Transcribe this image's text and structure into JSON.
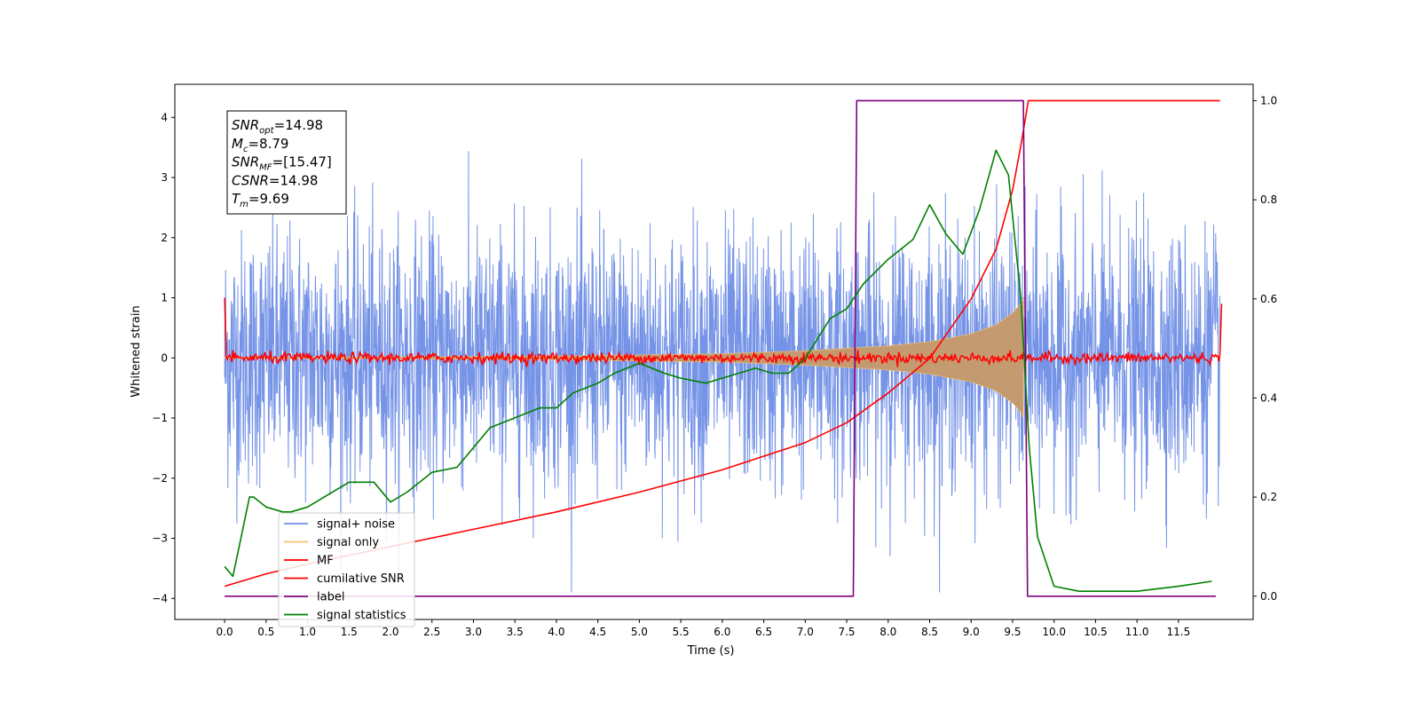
{
  "chart_data": {
    "type": "line",
    "title": "",
    "xlabel": "Time (s)",
    "ylabel": "Whitened strain",
    "xlim": [
      -0.6,
      12.4
    ],
    "ylim": [
      -4.35,
      4.55
    ],
    "y2lim": [
      -0.047,
      1.033
    ],
    "xticks": [
      "0.0",
      "0.5",
      "1.0",
      "1.5",
      "2.0",
      "2.5",
      "3.0",
      "3.5",
      "4.0",
      "4.5",
      "5.0",
      "5.5",
      "6.0",
      "6.5",
      "7.0",
      "7.5",
      "8.0",
      "8.5",
      "9.0",
      "9.5",
      "10.0",
      "10.5",
      "11.0",
      "11.5"
    ],
    "yticks": [
      "4",
      "3",
      "2",
      "1",
      "0",
      "−1",
      "−2",
      "−3",
      "−4"
    ],
    "y2ticks": [
      "1.0",
      "0.8",
      "0.6",
      "0.4",
      "0.2",
      "0.0"
    ],
    "grid": false,
    "legend_position": "lower-left",
    "annotation": {
      "lines": [
        {
          "main": "SNR",
          "sub": "opt",
          "rest": "=14.98"
        },
        {
          "main": "M",
          "sub": "c",
          "rest": "=8.79"
        },
        {
          "main": "SNR",
          "sub": "MF",
          "rest": "=[15.47]"
        },
        {
          "main": "CSNR",
          "sub": "",
          "rest": "=14.98"
        },
        {
          "main": "T",
          "sub": "m",
          "rest": "=9.69"
        }
      ]
    },
    "colors": {
      "noise": "#6f8ee6",
      "signal": "#f5c36b",
      "signal_fill": "#c49a70",
      "mf": "#ff0000",
      "csnr": "#ff0000",
      "label": "#800080",
      "stats": "#008000"
    },
    "series": [
      {
        "name": "signal+ noise",
        "axis": "left",
        "description_values": {
          "x_range": [
            0.0,
            12.0
          ],
          "amplitude_range": [
            -3.9,
            4.15
          ]
        }
      },
      {
        "name": "signal only",
        "axis": "left",
        "envelope": {
          "x": [
            0.0,
            2.0,
            4.0,
            6.0,
            7.0,
            8.0,
            8.5,
            9.0,
            9.3,
            9.5,
            9.6,
            9.63
          ],
          "amp": [
            0.01,
            0.015,
            0.03,
            0.07,
            0.12,
            0.2,
            0.27,
            0.4,
            0.55,
            0.75,
            0.9,
            1.0
          ]
        }
      },
      {
        "name": "MF",
        "axis": "left",
        "x": [
          0.0,
          0.02,
          12.0,
          12.02
        ],
        "y": [
          1.0,
          0.0,
          0.0,
          0.9
        ]
      },
      {
        "name": "cumilative SNR",
        "axis": "right",
        "x": [
          0.0,
          0.5,
          1.0,
          2.0,
          3.0,
          4.0,
          5.0,
          6.0,
          7.0,
          7.5,
          8.0,
          8.5,
          9.0,
          9.3,
          9.5,
          9.6,
          9.69,
          12.0
        ],
        "y": [
          0.02,
          0.045,
          0.065,
          0.1,
          0.135,
          0.17,
          0.21,
          0.255,
          0.31,
          0.35,
          0.41,
          0.48,
          0.6,
          0.7,
          0.82,
          0.91,
          1.0,
          1.0
        ]
      },
      {
        "name": "label",
        "axis": "right",
        "x": [
          0.0,
          7.58,
          7.62,
          9.63,
          9.68,
          11.95
        ],
        "y": [
          0.0,
          0.0,
          1.0,
          1.0,
          0.0,
          0.0
        ]
      },
      {
        "name": "signal statistics",
        "axis": "right",
        "x": [
          0.0,
          0.1,
          0.2,
          0.3,
          0.35,
          0.5,
          0.7,
          0.8,
          1.0,
          1.2,
          1.5,
          1.8,
          2.0,
          2.2,
          2.5,
          2.8,
          3.0,
          3.2,
          3.5,
          3.8,
          4.0,
          4.2,
          4.5,
          4.7,
          5.0,
          5.3,
          5.5,
          5.8,
          6.0,
          6.2,
          6.4,
          6.6,
          6.8,
          7.0,
          7.3,
          7.5,
          7.7,
          8.0,
          8.3,
          8.5,
          8.7,
          8.9,
          9.1,
          9.3,
          9.45,
          9.6,
          9.7,
          9.8,
          10.0,
          10.3,
          10.6,
          11.0,
          11.5,
          11.9
        ],
        "y": [
          0.06,
          0.04,
          0.12,
          0.2,
          0.2,
          0.18,
          0.17,
          0.17,
          0.18,
          0.2,
          0.23,
          0.23,
          0.19,
          0.21,
          0.25,
          0.26,
          0.3,
          0.34,
          0.36,
          0.38,
          0.38,
          0.41,
          0.43,
          0.45,
          0.47,
          0.45,
          0.44,
          0.43,
          0.44,
          0.45,
          0.46,
          0.45,
          0.45,
          0.48,
          0.56,
          0.58,
          0.63,
          0.68,
          0.72,
          0.79,
          0.73,
          0.69,
          0.78,
          0.9,
          0.85,
          0.6,
          0.3,
          0.12,
          0.02,
          0.01,
          0.01,
          0.01,
          0.02,
          0.03
        ]
      }
    ]
  }
}
